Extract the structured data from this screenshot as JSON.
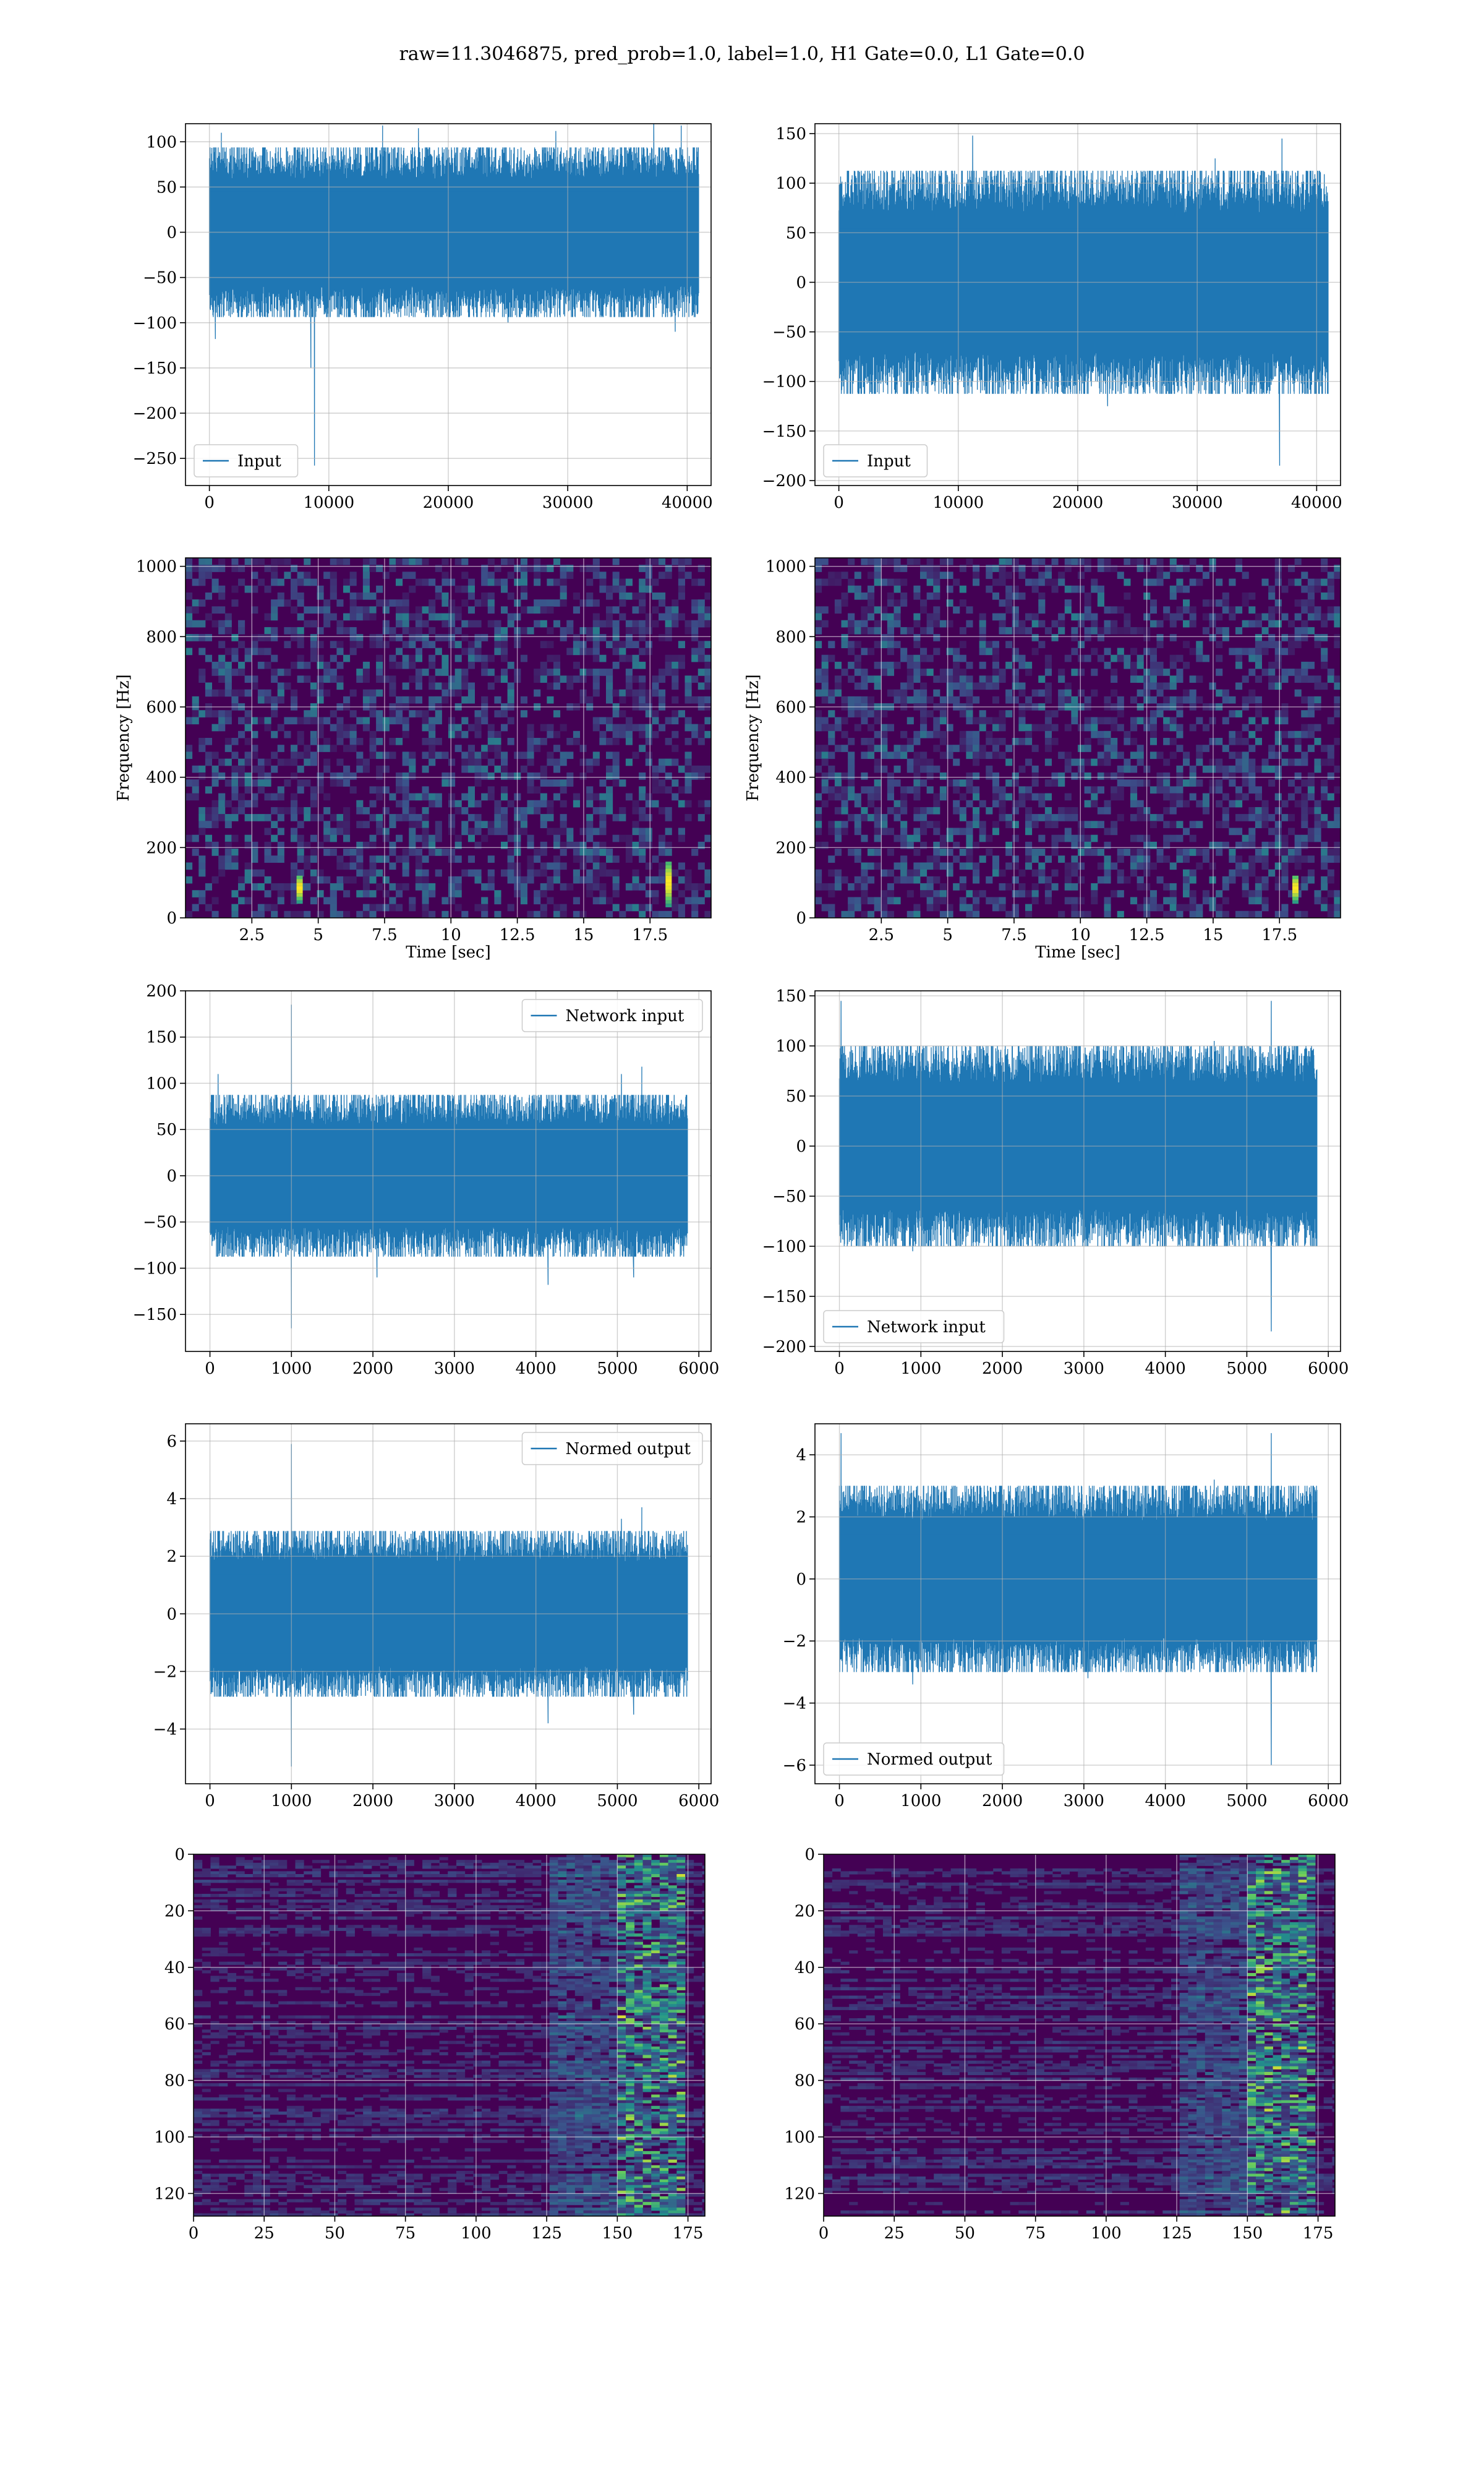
{
  "figure": {
    "suptitle": "raw=11.3046875, pred_prob=1.0, label=1.0, H1 Gate=0.0, L1 Gate=0.0"
  },
  "colors": {
    "line": "#1f77b4",
    "grid": "#b0b0b0",
    "viridis_low": "#440154",
    "viridis_mid": "#21918c",
    "viridis_high": "#fde725"
  },
  "chart_data": [
    {
      "id": "input_h1",
      "type": "line",
      "xlim": [
        -2000,
        42000
      ],
      "ylim": [
        -280,
        120
      ],
      "xticks": [
        0,
        10000,
        20000,
        30000,
        40000
      ],
      "yticks": [
        100,
        50,
        0,
        -50,
        -100,
        -150,
        -200,
        -250
      ],
      "xlabel": "",
      "ylabel": "",
      "legend": {
        "label": "Input",
        "loc": "lower left"
      },
      "grid": true,
      "series": [
        {
          "name": "Input",
          "x_range": [
            0,
            40960
          ],
          "envelope": [
            -75,
            75
          ],
          "peaks": [
            {
              "x": 500,
              "y": -118
            },
            {
              "x": 1000,
              "y": 110
            },
            {
              "x": 8800,
              "y": -258
            },
            {
              "x": 8500,
              "y": -150
            },
            {
              "x": 14500,
              "y": 118
            },
            {
              "x": 17500,
              "y": 115
            },
            {
              "x": 25000,
              "y": -100
            },
            {
              "x": 29000,
              "y": 112
            },
            {
              "x": 37200,
              "y": 125
            },
            {
              "x": 39500,
              "y": 118
            },
            {
              "x": 39000,
              "y": -110
            }
          ]
        }
      ]
    },
    {
      "id": "input_l1",
      "type": "line",
      "xlim": [
        -2000,
        42000
      ],
      "ylim": [
        -205,
        160
      ],
      "xticks": [
        0,
        10000,
        20000,
        30000,
        40000
      ],
      "yticks": [
        150,
        100,
        50,
        0,
        -50,
        -100,
        -150,
        -200
      ],
      "xlabel": "",
      "ylabel": "",
      "legend": {
        "label": "Input",
        "loc": "lower left"
      },
      "grid": true,
      "series": [
        {
          "name": "Input",
          "x_range": [
            0,
            40960
          ],
          "envelope": [
            -90,
            90
          ],
          "peaks": [
            {
              "x": 11200,
              "y": 148
            },
            {
              "x": 37100,
              "y": 145
            },
            {
              "x": 36900,
              "y": -185
            },
            {
              "x": 800,
              "y": 110
            },
            {
              "x": 22500,
              "y": -125
            },
            {
              "x": 31500,
              "y": 125
            },
            {
              "x": 15000,
              "y": -110
            }
          ]
        }
      ]
    },
    {
      "id": "spec_h1",
      "type": "heatmap",
      "xlim": [
        0,
        19.8
      ],
      "ylim": [
        0,
        1024
      ],
      "xticks": [
        2.5,
        5.0,
        7.5,
        10.0,
        12.5,
        15.0,
        17.5
      ],
      "yticks": [
        0,
        200,
        400,
        600,
        800,
        1000
      ],
      "xlabel": "Time [sec]",
      "ylabel": "Frequency [Hz]",
      "grid": true,
      "hot_spots": [
        {
          "t": 18.2,
          "f_min": 30,
          "f_max": 160
        },
        {
          "t": 4.3,
          "f_min": 40,
          "f_max": 120
        }
      ]
    },
    {
      "id": "spec_l1",
      "type": "heatmap",
      "xlim": [
        0,
        19.8
      ],
      "ylim": [
        0,
        1024
      ],
      "xticks": [
        2.5,
        5.0,
        7.5,
        10.0,
        12.5,
        15.0,
        17.5
      ],
      "yticks": [
        0,
        200,
        400,
        600,
        800,
        1000
      ],
      "xlabel": "Time [sec]",
      "ylabel": "Frequency [Hz]",
      "grid": true,
      "hot_spots": [
        {
          "t": 18.1,
          "f_min": 40,
          "f_max": 120
        }
      ]
    },
    {
      "id": "netin_h1",
      "type": "line",
      "xlim": [
        -300,
        6150
      ],
      "ylim": [
        -190,
        200
      ],
      "xticks": [
        0,
        1000,
        2000,
        3000,
        4000,
        5000,
        6000
      ],
      "yticks": [
        200,
        150,
        100,
        50,
        0,
        -50,
        -100,
        -150
      ],
      "xlabel": "",
      "ylabel": "",
      "legend": {
        "label": "Network input",
        "loc": "upper right"
      },
      "grid": true,
      "series": [
        {
          "name": "Network input",
          "x_range": [
            0,
            5860
          ],
          "envelope": [
            -70,
            70
          ],
          "peaks": [
            {
              "x": 1000,
              "y": 185
            },
            {
              "x": 1000,
              "y": -165
            },
            {
              "x": 5300,
              "y": 118
            },
            {
              "x": 5200,
              "y": -110
            },
            {
              "x": 4150,
              "y": -118
            },
            {
              "x": 5050,
              "y": 110
            },
            {
              "x": 100,
              "y": 110
            },
            {
              "x": 2050,
              "y": -110
            }
          ]
        }
      ]
    },
    {
      "id": "netin_l1",
      "type": "line",
      "xlim": [
        -300,
        6150
      ],
      "ylim": [
        -205,
        155
      ],
      "xticks": [
        0,
        1000,
        2000,
        3000,
        4000,
        5000,
        6000
      ],
      "yticks": [
        150,
        100,
        50,
        0,
        -50,
        -100,
        -150,
        -200
      ],
      "xlabel": "",
      "ylabel": "",
      "legend": {
        "label": "Network input",
        "loc": "lower left"
      },
      "grid": true,
      "series": [
        {
          "name": "Network input",
          "x_range": [
            0,
            5860
          ],
          "envelope": [
            -80,
            80
          ],
          "peaks": [
            {
              "x": 20,
              "y": 145
            },
            {
              "x": 5300,
              "y": 145
            },
            {
              "x": 5300,
              "y": -185
            },
            {
              "x": 4600,
              "y": 105
            },
            {
              "x": 900,
              "y": -105
            },
            {
              "x": 3050,
              "y": -100
            },
            {
              "x": 5700,
              "y": 90
            }
          ]
        }
      ]
    },
    {
      "id": "normed_h1",
      "type": "line",
      "xlim": [
        -300,
        6150
      ],
      "ylim": [
        -5.9,
        6.6
      ],
      "xticks": [
        0,
        1000,
        2000,
        3000,
        4000,
        5000,
        6000
      ],
      "yticks": [
        6,
        4,
        2,
        0,
        -2,
        -4
      ],
      "xlabel": "",
      "ylabel": "",
      "legend": {
        "label": "Normed output",
        "loc": "upper right"
      },
      "grid": true,
      "series": [
        {
          "name": "Normed output",
          "x_range": [
            0,
            5860
          ],
          "envelope": [
            -2.3,
            2.3
          ],
          "peaks": [
            {
              "x": 1000,
              "y": 5.9
            },
            {
              "x": 1000,
              "y": -5.3
            },
            {
              "x": 5300,
              "y": 3.7
            },
            {
              "x": 5200,
              "y": -3.5
            },
            {
              "x": 4150,
              "y": -3.8
            },
            {
              "x": 100,
              "y": 2.8
            },
            {
              "x": 5050,
              "y": 3.3
            }
          ]
        }
      ]
    },
    {
      "id": "normed_l1",
      "type": "line",
      "xlim": [
        -300,
        6150
      ],
      "ylim": [
        -6.6,
        5.0
      ],
      "xticks": [
        0,
        1000,
        2000,
        3000,
        4000,
        5000,
        6000
      ],
      "yticks": [
        4,
        2,
        0,
        -2,
        -4,
        -6
      ],
      "xlabel": "",
      "ylabel": "",
      "legend": {
        "label": "Normed output",
        "loc": "lower left"
      },
      "grid": true,
      "series": [
        {
          "name": "Normed output",
          "x_range": [
            0,
            5860
          ],
          "envelope": [
            -2.4,
            2.4
          ],
          "peaks": [
            {
              "x": 20,
              "y": 4.7
            },
            {
              "x": 5300,
              "y": 4.7
            },
            {
              "x": 5300,
              "y": -6.0
            },
            {
              "x": 900,
              "y": -3.4
            },
            {
              "x": 4600,
              "y": 3.2
            },
            {
              "x": 3050,
              "y": -3.2
            }
          ]
        }
      ]
    },
    {
      "id": "feat_h1",
      "type": "heatmap",
      "xlim": [
        0,
        181
      ],
      "ylim": [
        128,
        0
      ],
      "xticks": [
        0,
        25,
        50,
        75,
        100,
        125,
        150,
        175
      ],
      "yticks": [
        0,
        20,
        40,
        60,
        80,
        100,
        120
      ],
      "xlabel": "",
      "ylabel": "",
      "grid": true,
      "active_band": [
        150,
        172
      ],
      "diffuse_band": [
        125,
        150
      ]
    },
    {
      "id": "feat_l1",
      "type": "heatmap",
      "xlim": [
        0,
        181
      ],
      "ylim": [
        128,
        0
      ],
      "xticks": [
        0,
        25,
        50,
        75,
        100,
        125,
        150,
        175
      ],
      "yticks": [
        0,
        20,
        40,
        60,
        80,
        100,
        120
      ],
      "xlabel": "",
      "ylabel": "",
      "grid": true,
      "active_band": [
        150,
        172
      ],
      "diffuse_band": [
        125,
        150
      ]
    }
  ]
}
